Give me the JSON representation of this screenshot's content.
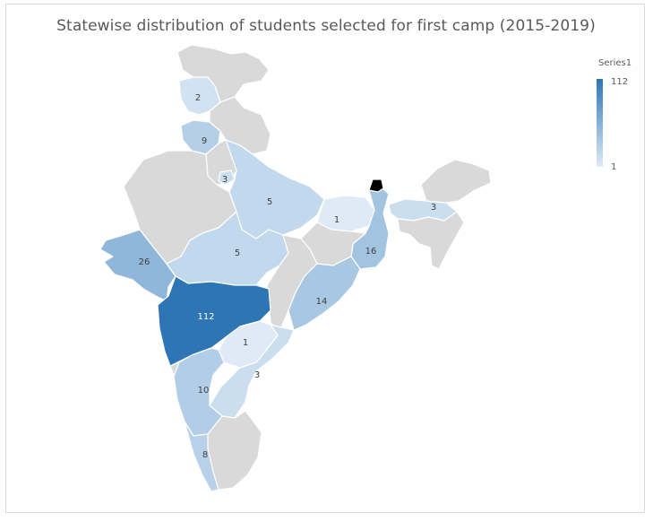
{
  "title": "Statewise distribution of students selected for first camp (2015-2019)",
  "legend": {
    "series_name": "Series1",
    "max_label": "112",
    "min_label": "1",
    "colors": {
      "low": "#deebf7",
      "high": "#2e75b6"
    }
  },
  "colors": {
    "no_data": "#d9d9d9",
    "border": "#ffffff",
    "label": "#404040"
  },
  "chart_data": {
    "type": "choropleth",
    "title": "Statewise distribution of students selected for first camp (2015-2019)",
    "series": "Series1",
    "range": [
      1,
      112
    ],
    "states": [
      {
        "name": "Jammu and Kashmir",
        "value": null
      },
      {
        "name": "Himachal Pradesh",
        "value": 2
      },
      {
        "name": "Punjab",
        "value": 9
      },
      {
        "name": "Haryana",
        "value": null
      },
      {
        "name": "Delhi",
        "value": 3
      },
      {
        "name": "Uttarakhand",
        "value": null
      },
      {
        "name": "Rajasthan",
        "value": null
      },
      {
        "name": "Uttar Pradesh",
        "value": 5
      },
      {
        "name": "Bihar",
        "value": 1
      },
      {
        "name": "Assam",
        "value": 3
      },
      {
        "name": "Arunachal Pradesh",
        "value": null
      },
      {
        "name": "Northeast states",
        "value": null
      },
      {
        "name": "West Bengal",
        "value": 16
      },
      {
        "name": "Jharkhand",
        "value": null
      },
      {
        "name": "Gujarat",
        "value": 26
      },
      {
        "name": "Madhya Pradesh",
        "value": 5
      },
      {
        "name": "Chhattisgarh",
        "value": null
      },
      {
        "name": "Odisha",
        "value": 14
      },
      {
        "name": "Maharashtra",
        "value": 112
      },
      {
        "name": "Telangana",
        "value": 1
      },
      {
        "name": "Andhra Pradesh",
        "value": 3
      },
      {
        "name": "Karnataka",
        "value": 10
      },
      {
        "name": "Goa",
        "value": null
      },
      {
        "name": "Kerala",
        "value": 8
      },
      {
        "name": "Tamil Nadu",
        "value": null
      }
    ]
  }
}
